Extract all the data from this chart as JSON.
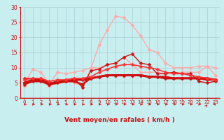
{
  "xlabel": "Vent moyen/en rafales ( km/h )",
  "xlim": [
    -0.5,
    23.5
  ],
  "ylim": [
    0,
    30
  ],
  "yticks": [
    0,
    5,
    10,
    15,
    20,
    25,
    30
  ],
  "xticks": [
    0,
    1,
    2,
    3,
    4,
    5,
    6,
    7,
    8,
    9,
    10,
    11,
    12,
    13,
    14,
    15,
    16,
    17,
    18,
    19,
    20,
    21,
    22,
    23
  ],
  "bg_color": "#c8eef0",
  "grid_color": "#aed4d8",
  "series": [
    {
      "x": [
        0,
        1,
        2,
        3,
        4,
        5,
        6,
        7,
        8,
        9,
        10,
        11,
        12,
        13,
        14,
        15,
        16,
        17,
        18,
        19,
        20,
        21,
        22,
        23
      ],
      "y": [
        4.5,
        9.5,
        8.5,
        4.5,
        8.5,
        8.0,
        8.5,
        9.0,
        10.0,
        10.0,
        11.0,
        11.5,
        13.5,
        11.0,
        8.5,
        8.5,
        8.5,
        8.0,
        8.0,
        8.5,
        8.5,
        8.5,
        10.5,
        7.5
      ],
      "color": "#ffaaaa",
      "lw": 1.0,
      "marker": "D",
      "ms": 2.5
    },
    {
      "x": [
        0,
        1,
        2,
        3,
        4,
        5,
        6,
        7,
        8,
        9,
        10,
        11,
        12,
        13,
        14,
        15,
        16,
        17,
        18,
        19,
        20,
        21,
        22,
        23
      ],
      "y": [
        4.0,
        6.5,
        5.5,
        4.0,
        5.0,
        5.5,
        5.0,
        4.0,
        9.5,
        17.5,
        22.5,
        27.0,
        26.5,
        24.0,
        20.5,
        16.0,
        15.0,
        11.5,
        10.0,
        10.0,
        10.0,
        10.5,
        10.5,
        10.0
      ],
      "color": "#ffaaaa",
      "lw": 1.0,
      "marker": "D",
      "ms": 2.5
    },
    {
      "x": [
        0,
        1,
        2,
        3,
        4,
        5,
        6,
        7,
        8,
        9,
        10,
        11,
        12,
        13,
        14,
        15,
        16,
        17,
        18,
        19,
        20,
        21,
        22,
        23
      ],
      "y": [
        6.5,
        6.5,
        6.5,
        5.0,
        5.5,
        6.0,
        6.5,
        3.5,
        9.0,
        9.5,
        11.0,
        11.5,
        13.5,
        14.5,
        11.5,
        11.0,
        8.0,
        8.0,
        8.5,
        8.0,
        8.0,
        5.5,
        5.0,
        5.5
      ],
      "color": "#cc1111",
      "lw": 1.0,
      "marker": "D",
      "ms": 2.5
    },
    {
      "x": [
        0,
        1,
        2,
        3,
        4,
        5,
        6,
        7,
        8,
        9,
        10,
        11,
        12,
        13,
        14,
        15,
        16,
        17,
        18,
        19,
        20,
        21,
        22,
        23
      ],
      "y": [
        4.5,
        5.5,
        5.5,
        4.5,
        5.5,
        5.5,
        5.5,
        4.5,
        6.5,
        7.0,
        7.5,
        7.5,
        7.5,
        7.5,
        7.5,
        7.0,
        7.0,
        7.0,
        6.5,
        6.5,
        6.5,
        6.5,
        6.0,
        6.0
      ],
      "color": "#cc1111",
      "lw": 1.8,
      "marker": "D",
      "ms": 2.5
    },
    {
      "x": [
        0,
        1,
        2,
        3,
        4,
        5,
        6,
        7,
        8,
        9,
        10,
        11,
        12,
        13,
        14,
        15,
        16,
        17,
        18,
        19,
        20,
        21,
        22,
        23
      ],
      "y": [
        5.0,
        6.0,
        6.0,
        4.5,
        5.0,
        5.5,
        6.0,
        6.0,
        6.5,
        7.0,
        7.5,
        7.5,
        7.5,
        7.5,
        7.5,
        7.0,
        7.0,
        6.5,
        6.5,
        6.5,
        6.5,
        6.5,
        6.5,
        6.0
      ],
      "color": "#cc1111",
      "lw": 2.2,
      "marker": "D",
      "ms": 2.5
    },
    {
      "x": [
        0,
        1,
        2,
        3,
        4,
        5,
        6,
        7,
        8,
        9,
        10,
        11,
        12,
        13,
        14,
        15,
        16,
        17,
        18,
        19,
        20,
        21,
        22,
        23
      ],
      "y": [
        6.0,
        6.5,
        6.5,
        5.5,
        6.0,
        6.0,
        6.5,
        6.5,
        7.0,
        8.5,
        9.5,
        10.5,
        11.0,
        11.0,
        10.5,
        10.0,
        9.5,
        8.5,
        8.0,
        8.0,
        7.5,
        7.0,
        6.5,
        6.0
      ],
      "color": "#ff3333",
      "lw": 1.2,
      "marker": "D",
      "ms": 2.5
    }
  ],
  "wind_arrows_x": [
    0,
    1,
    2,
    3,
    4,
    5,
    6,
    7,
    8,
    9,
    10,
    11,
    12,
    13,
    14,
    15,
    16,
    17,
    18,
    19,
    20,
    21,
    22,
    23
  ],
  "wind_angles": [
    225,
    225,
    225,
    225,
    225,
    225,
    225,
    225,
    225,
    225,
    225,
    225,
    225,
    225,
    225,
    225,
    225,
    225,
    225,
    225,
    225,
    225,
    45,
    315
  ],
  "axis_color": "#cc1111",
  "tick_color": "#cc1111",
  "label_color": "#cc1111",
  "xlabel_fontsize": 6.5,
  "tick_fontsize": 5.0,
  "ytick_fontsize": 5.5
}
